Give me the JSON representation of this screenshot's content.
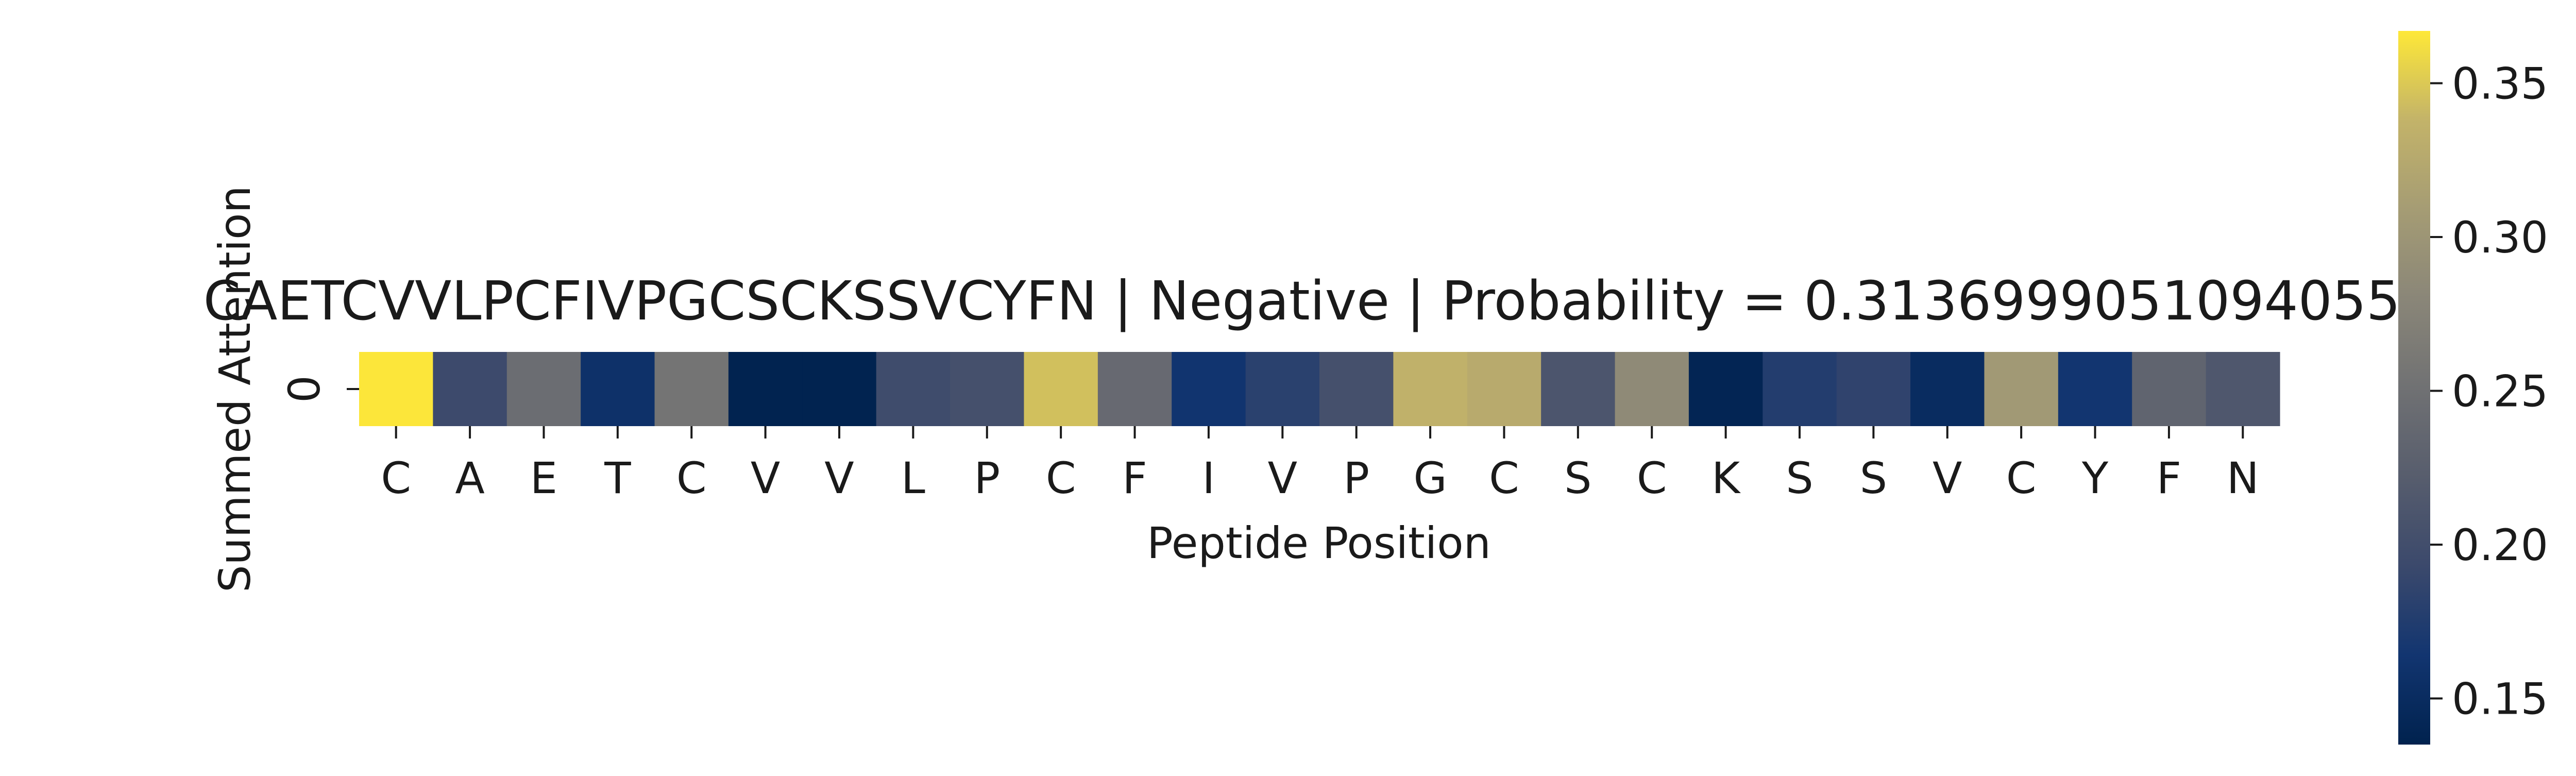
{
  "chart_data": {
    "type": "heatmap",
    "title": "CAETCVVLPCFIVPGCSCKSSVCYFN | Negative | Probability = 0.31369990510940552",
    "xlabel": "Peptide Position",
    "ylabel": "Summed Attention",
    "row_labels": [
      "0"
    ],
    "categories": [
      "C",
      "A",
      "E",
      "T",
      "C",
      "V",
      "V",
      "L",
      "P",
      "C",
      "F",
      "I",
      "V",
      "P",
      "G",
      "C",
      "S",
      "C",
      "K",
      "S",
      "S",
      "V",
      "C",
      "Y",
      "F",
      "N"
    ],
    "values": [
      0.366,
      0.195,
      0.245,
      0.158,
      0.255,
      0.137,
      0.137,
      0.197,
      0.203,
      0.345,
      0.24,
      0.163,
      0.181,
      0.203,
      0.335,
      0.327,
      0.211,
      0.285,
      0.14,
      0.176,
      0.185,
      0.15,
      0.305,
      0.164,
      0.232,
      0.214
    ],
    "colormap": "cividis",
    "colorbar": {
      "min": 0.135,
      "max": 0.367,
      "ticks": [
        0.15,
        0.2,
        0.25,
        0.3,
        0.35
      ],
      "tick_labels": [
        "0.15",
        "0.20",
        "0.25",
        "0.30",
        "0.35"
      ]
    }
  }
}
